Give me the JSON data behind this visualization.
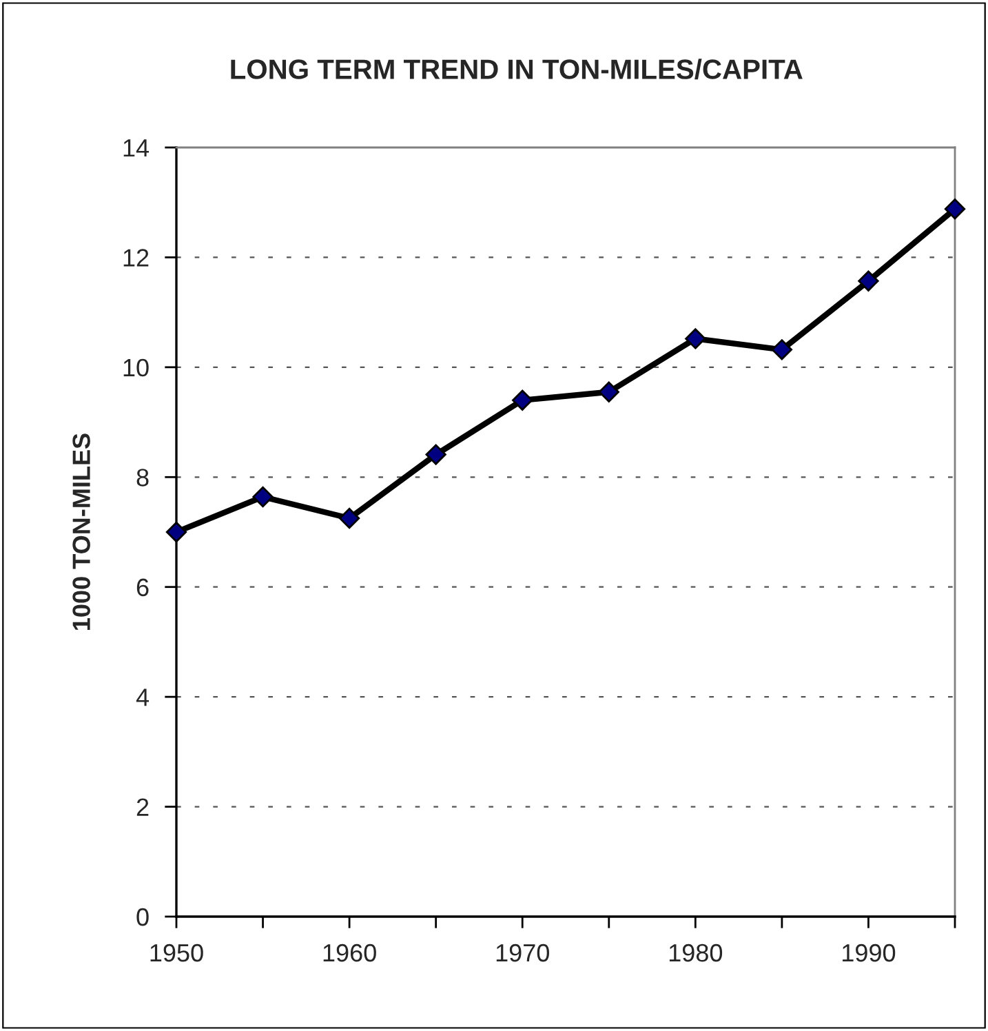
{
  "chart_data": {
    "type": "line",
    "title": "LONG TERM TREND IN TON-MILES/CAPITA",
    "ylabel": "1000 TON-MILES",
    "x": [
      1950,
      1955,
      1960,
      1965,
      1970,
      1975,
      1980,
      1985,
      1990,
      1995
    ],
    "series": [
      {
        "color": "#000000",
        "marker": "diamond",
        "values": [
          7.0,
          7.64,
          7.25,
          8.41,
          9.4,
          9.55,
          10.52,
          10.32,
          11.57,
          12.88
        ]
      }
    ],
    "xlim": [
      1950,
      1995
    ],
    "xticks": [
      1950,
      {
        "value": 1955,
        "label": null
      },
      1960,
      {
        "value": 1965,
        "label": null
      },
      1970,
      {
        "value": 1975,
        "label": null
      },
      1980,
      {
        "value": 1985,
        "label": null
      },
      1990,
      {
        "value": 1995,
        "label": null
      }
    ],
    "ylim": [
      0,
      14
    ],
    "yticks": [
      0,
      2,
      4,
      6,
      8,
      10,
      12,
      14
    ],
    "grid": "y",
    "line_style": "solid"
  }
}
